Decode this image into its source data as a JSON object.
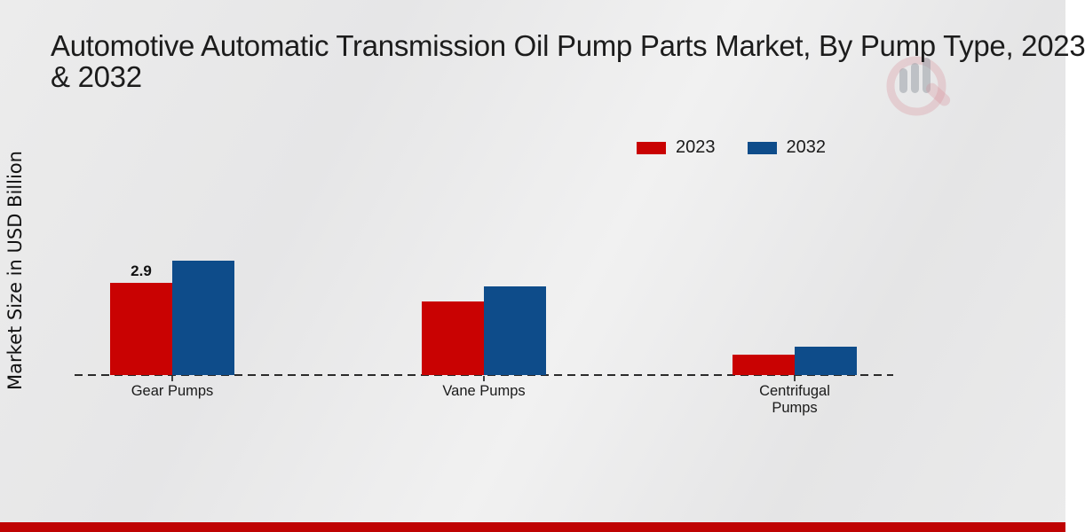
{
  "title": {
    "line1": "Automotive Automatic Transmission Oil Pump Parts Market, By Pump Type, 2023",
    "line2": "& 2032"
  },
  "ylabel": "Market Size in USD Billion",
  "chart_data": {
    "type": "bar",
    "title": "Automotive Automatic Transmission Oil Pump Parts Market, By Pump Type, 2023 & 2032",
    "categories": [
      "Gear Pumps",
      "Vane Pumps",
      "Centrifugal Pumps"
    ],
    "series": [
      {
        "name": "2023",
        "color": "#c90202",
        "values": [
          2.9,
          2.3,
          0.65
        ]
      },
      {
        "name": "2032",
        "color": "#0e4c8a",
        "values": [
          3.6,
          2.8,
          0.9
        ]
      }
    ],
    "data_labels": [
      {
        "series": "2023",
        "category": "Gear Pumps",
        "text": "2.9"
      }
    ],
    "xlabel": "",
    "ylabel": "Market Size in USD Billion",
    "ylim": [
      0,
      4.5
    ],
    "grid": false,
    "legend_position": "top-right",
    "x_axis_style": "dashed-baseline-with-ticks",
    "y_axis_ticks_visible": false
  },
  "colors": {
    "series_2023": "#c90202",
    "series_2032": "#0e4c8a",
    "footer_red": "#bf0303",
    "background": "#eaeaea",
    "baseline": "#2b2b2b"
  },
  "watermark": {
    "icon": "magnifier-bar-chart-logo"
  }
}
